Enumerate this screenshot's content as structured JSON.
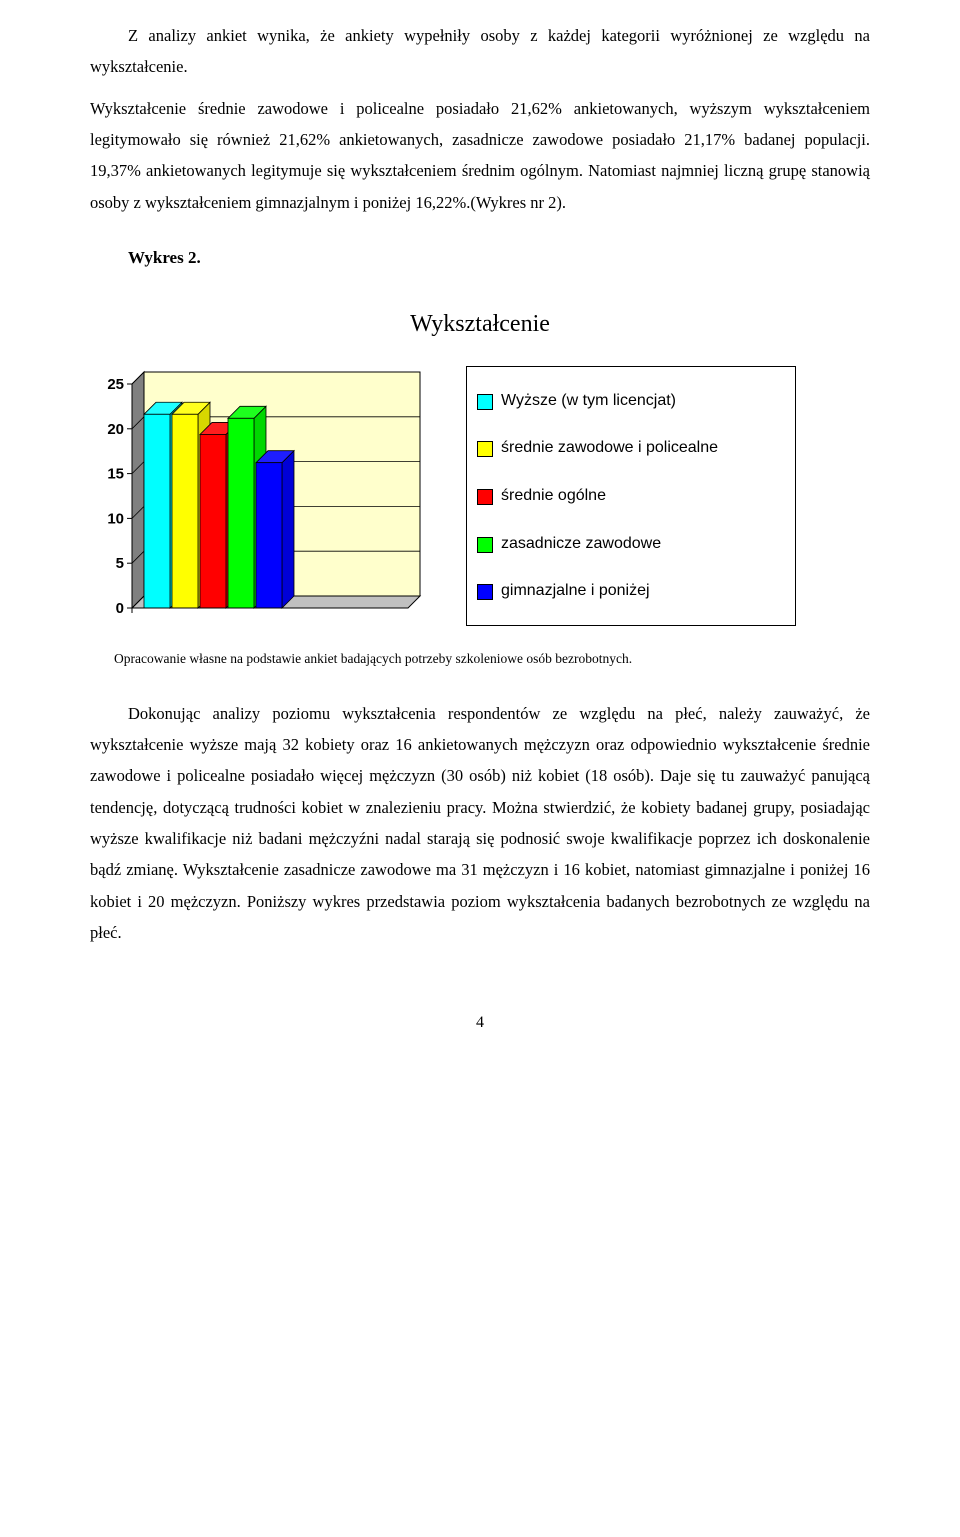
{
  "paragraphs": {
    "p1": "Z analizy ankiet wynika, że ankiety wypełniły osoby z każdej kategorii wyróżnionej ze względu na wykształcenie.",
    "p2": "Wykształcenie średnie zawodowe i policealne posiadało 21,62% ankietowanych, wyższym wykształceniem legitymowało się również 21,62% ankietowanych, zasadnicze zawodowe posiadało 21,17% badanej populacji. 19,37% ankietowanych legitymuje się wykształceniem średnim ogólnym. Natomiast najmniej liczną grupę stanowią osoby z wykształceniem gimnazjalnym i poniżej 16,22%.(Wykres nr 2).",
    "chart_heading": "Wykres 2.",
    "caption": "Opracowanie własne na podstawie ankiet badających potrzeby szkoleniowe osób bezrobotnych.",
    "p3": "Dokonując analizy poziomu wykształcenia respondentów ze względu na płeć, należy zauważyć, że wykształcenie wyższe mają 32 kobiety oraz 16 ankietowanych mężczyzn oraz odpowiednio wykształcenie średnie zawodowe i policealne posiadało więcej mężczyzn (30 osób) niż kobiet (18 osób). Daje się tu zauważyć panującą tendencję, dotyczącą trudności kobiet w znalezieniu pracy. Można stwierdzić, że kobiety badanej grupy, posiadając wyższe kwalifikacje niż badani mężczyźni nadal starają się podnosić swoje kwalifikacje poprzez ich doskonalenie bądź zmianę. Wykształcenie zasadnicze zawodowe ma 31 mężczyzn i 16 kobiet, natomiast  gimnazjalne i poniżej 16 kobiet i  20 mężczyzn. Poniższy wykres przedstawia poziom wykształcenia badanych bezrobotnych ze względu na płeć."
  },
  "chart": {
    "title": "Wykształcenie",
    "type": "bar",
    "ylim": [
      0,
      25
    ],
    "yticks": [
      0,
      5,
      10,
      15,
      20,
      25
    ],
    "plot_fill": "#ffffcc",
    "plot_border": "#000000",
    "grid_color": "#000000",
    "side_3d": "#808080",
    "top_3d": "#c0c0c0",
    "tick_font": "Arial",
    "tick_fontsize": 15,
    "series": [
      {
        "label": "Wyższe (w tym licencjat)",
        "value": 21.62,
        "color": "#00ffff"
      },
      {
        "label": "średnie zawodowe i policealne",
        "value": 21.62,
        "color": "#ffff00"
      },
      {
        "label": "średnie ogólne",
        "value": 19.37,
        "color": "#ff0000"
      },
      {
        "label": "zasadnicze zawodowe",
        "value": 21.17,
        "color": "#00ff00"
      },
      {
        "label": "gimnazjalne i poniżej",
        "value": 16.22,
        "color": "#0000ff"
      }
    ]
  },
  "page_number": "4"
}
